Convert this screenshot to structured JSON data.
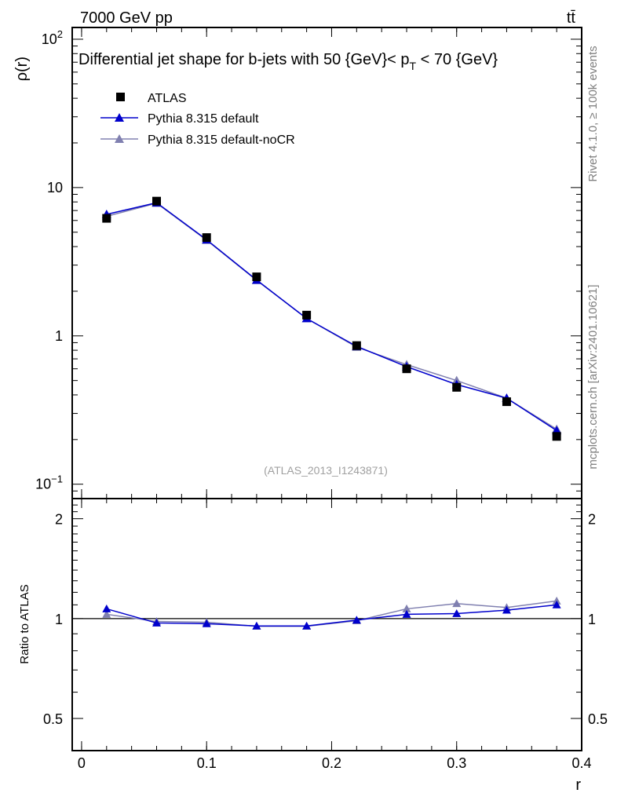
{
  "header": {
    "energy_label": "7000 GeV pp",
    "process_label": "tt̄",
    "side_rivet": "Rivet 4.1.0, ≥ 100k events",
    "side_mcplots": "mcplots.cern.ch [arXiv:2401.10621]"
  },
  "colors": {
    "data": "#000000",
    "pythia_default": "#0000cc",
    "pythia_nocr": "#8080b0",
    "watermark": "#a0a0a0",
    "side_text": "#808080"
  },
  "chart_data": {
    "type": "line",
    "title": "Differential jet shape for b-jets with 50 {GeV}< p_T < 70 {GeV}",
    "title_parts": {
      "before": "Differential jet shape for b-jets with 50 {GeV}< p",
      "subscript": "T",
      "after": " < 70 {GeV}"
    },
    "analysis_id": "(ATLAS_2013_I1243871)",
    "xlabel": "r",
    "ylabel": "ρ(r)",
    "ratio_ylabel": "Ratio to ATLAS",
    "xlim": [
      -0.0075,
      0.4
    ],
    "ylim": [
      0.08,
      120
    ],
    "yscale": "log",
    "ratio_ylim": [
      0.4,
      2.3
    ],
    "ratio_yscale": "log",
    "x_ticks": [
      0,
      0.1,
      0.2,
      0.3,
      0.4
    ],
    "x_tick_labels": [
      "0",
      "0.1",
      "0.2",
      "0.3",
      "0.4"
    ],
    "y_ticks": [
      0.1,
      1,
      10,
      100
    ],
    "y_tick_labels": [
      {
        "base": "10",
        "exp": "−1"
      },
      {
        "base": "1",
        "exp": ""
      },
      {
        "base": "10",
        "exp": ""
      },
      {
        "base": "10",
        "exp": "2"
      }
    ],
    "ratio_ticks": [
      0.5,
      1,
      2
    ],
    "ratio_tick_labels": [
      "0.5",
      "1",
      "2"
    ],
    "x": [
      0.02,
      0.06,
      0.1,
      0.14,
      0.18,
      0.22,
      0.26,
      0.3,
      0.34,
      0.38
    ],
    "series": [
      {
        "name": "ATLAS",
        "marker": "square",
        "values": [
          6.2,
          8.1,
          4.6,
          2.5,
          1.38,
          0.86,
          0.6,
          0.45,
          0.36,
          0.21
        ]
      },
      {
        "name": "Pythia 8.315 default",
        "marker": "triangle",
        "values": [
          6.6,
          7.9,
          4.45,
          2.38,
          1.31,
          0.85,
          0.62,
          0.47,
          0.38,
          0.23
        ]
      },
      {
        "name": "Pythia 8.315 default-noCR",
        "marker": "triangle",
        "values": [
          6.4,
          7.85,
          4.42,
          2.37,
          1.31,
          0.84,
          0.64,
          0.5,
          0.38,
          0.235
        ]
      }
    ],
    "ratio_series": [
      {
        "name": "Pythia 8.315 default",
        "values": [
          1.07,
          0.97,
          0.965,
          0.95,
          0.95,
          0.99,
          1.03,
          1.035,
          1.06,
          1.1
        ]
      },
      {
        "name": "Pythia 8.315 default-noCR",
        "values": [
          1.03,
          0.98,
          0.975,
          0.948,
          0.948,
          0.985,
          1.07,
          1.11,
          1.08,
          1.13
        ]
      }
    ]
  }
}
